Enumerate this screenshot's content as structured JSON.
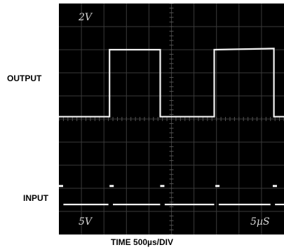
{
  "chart_data": {
    "type": "line",
    "title": "",
    "xlabel_prefix": "TIME 500",
    "xlabel_mu": "µ",
    "xlabel_suffix": "s/DIV",
    "time_per_div_us": 500,
    "x_divisions": 10,
    "y_divisions": 10,
    "grid": true,
    "background": "#000000",
    "trace_color": "#f2f2f2",
    "grid_color": "#3a3a3a",
    "channel_labels": {
      "output_scale": "2V",
      "input_scale": "5V",
      "sweep": "5µS"
    },
    "series": [
      {
        "name": "OUTPUT",
        "time_div": [
          0,
          2.25,
          2.25,
          4.5,
          4.5,
          6.9,
          6.9,
          9.55,
          9.55,
          10
        ],
        "level_div": [
          5.1,
          5.1,
          8.0,
          8.0,
          5.1,
          5.1,
          8.0,
          8.05,
          5.1,
          5.1
        ]
      },
      {
        "name": "INPUT",
        "segments_div": [
          [
            0.2,
            2.2
          ],
          [
            2.4,
            4.5
          ],
          [
            4.7,
            6.9
          ],
          [
            7.1,
            9.4
          ],
          [
            9.6,
            10
          ]
        ],
        "level_div": 1.3,
        "marker_time_div": [
          0.0,
          2.25,
          4.5,
          6.95,
          9.5
        ],
        "marker_level_div": 2.1
      }
    ]
  },
  "labels": {
    "output": "OUTPUT",
    "input": "INPUT"
  }
}
